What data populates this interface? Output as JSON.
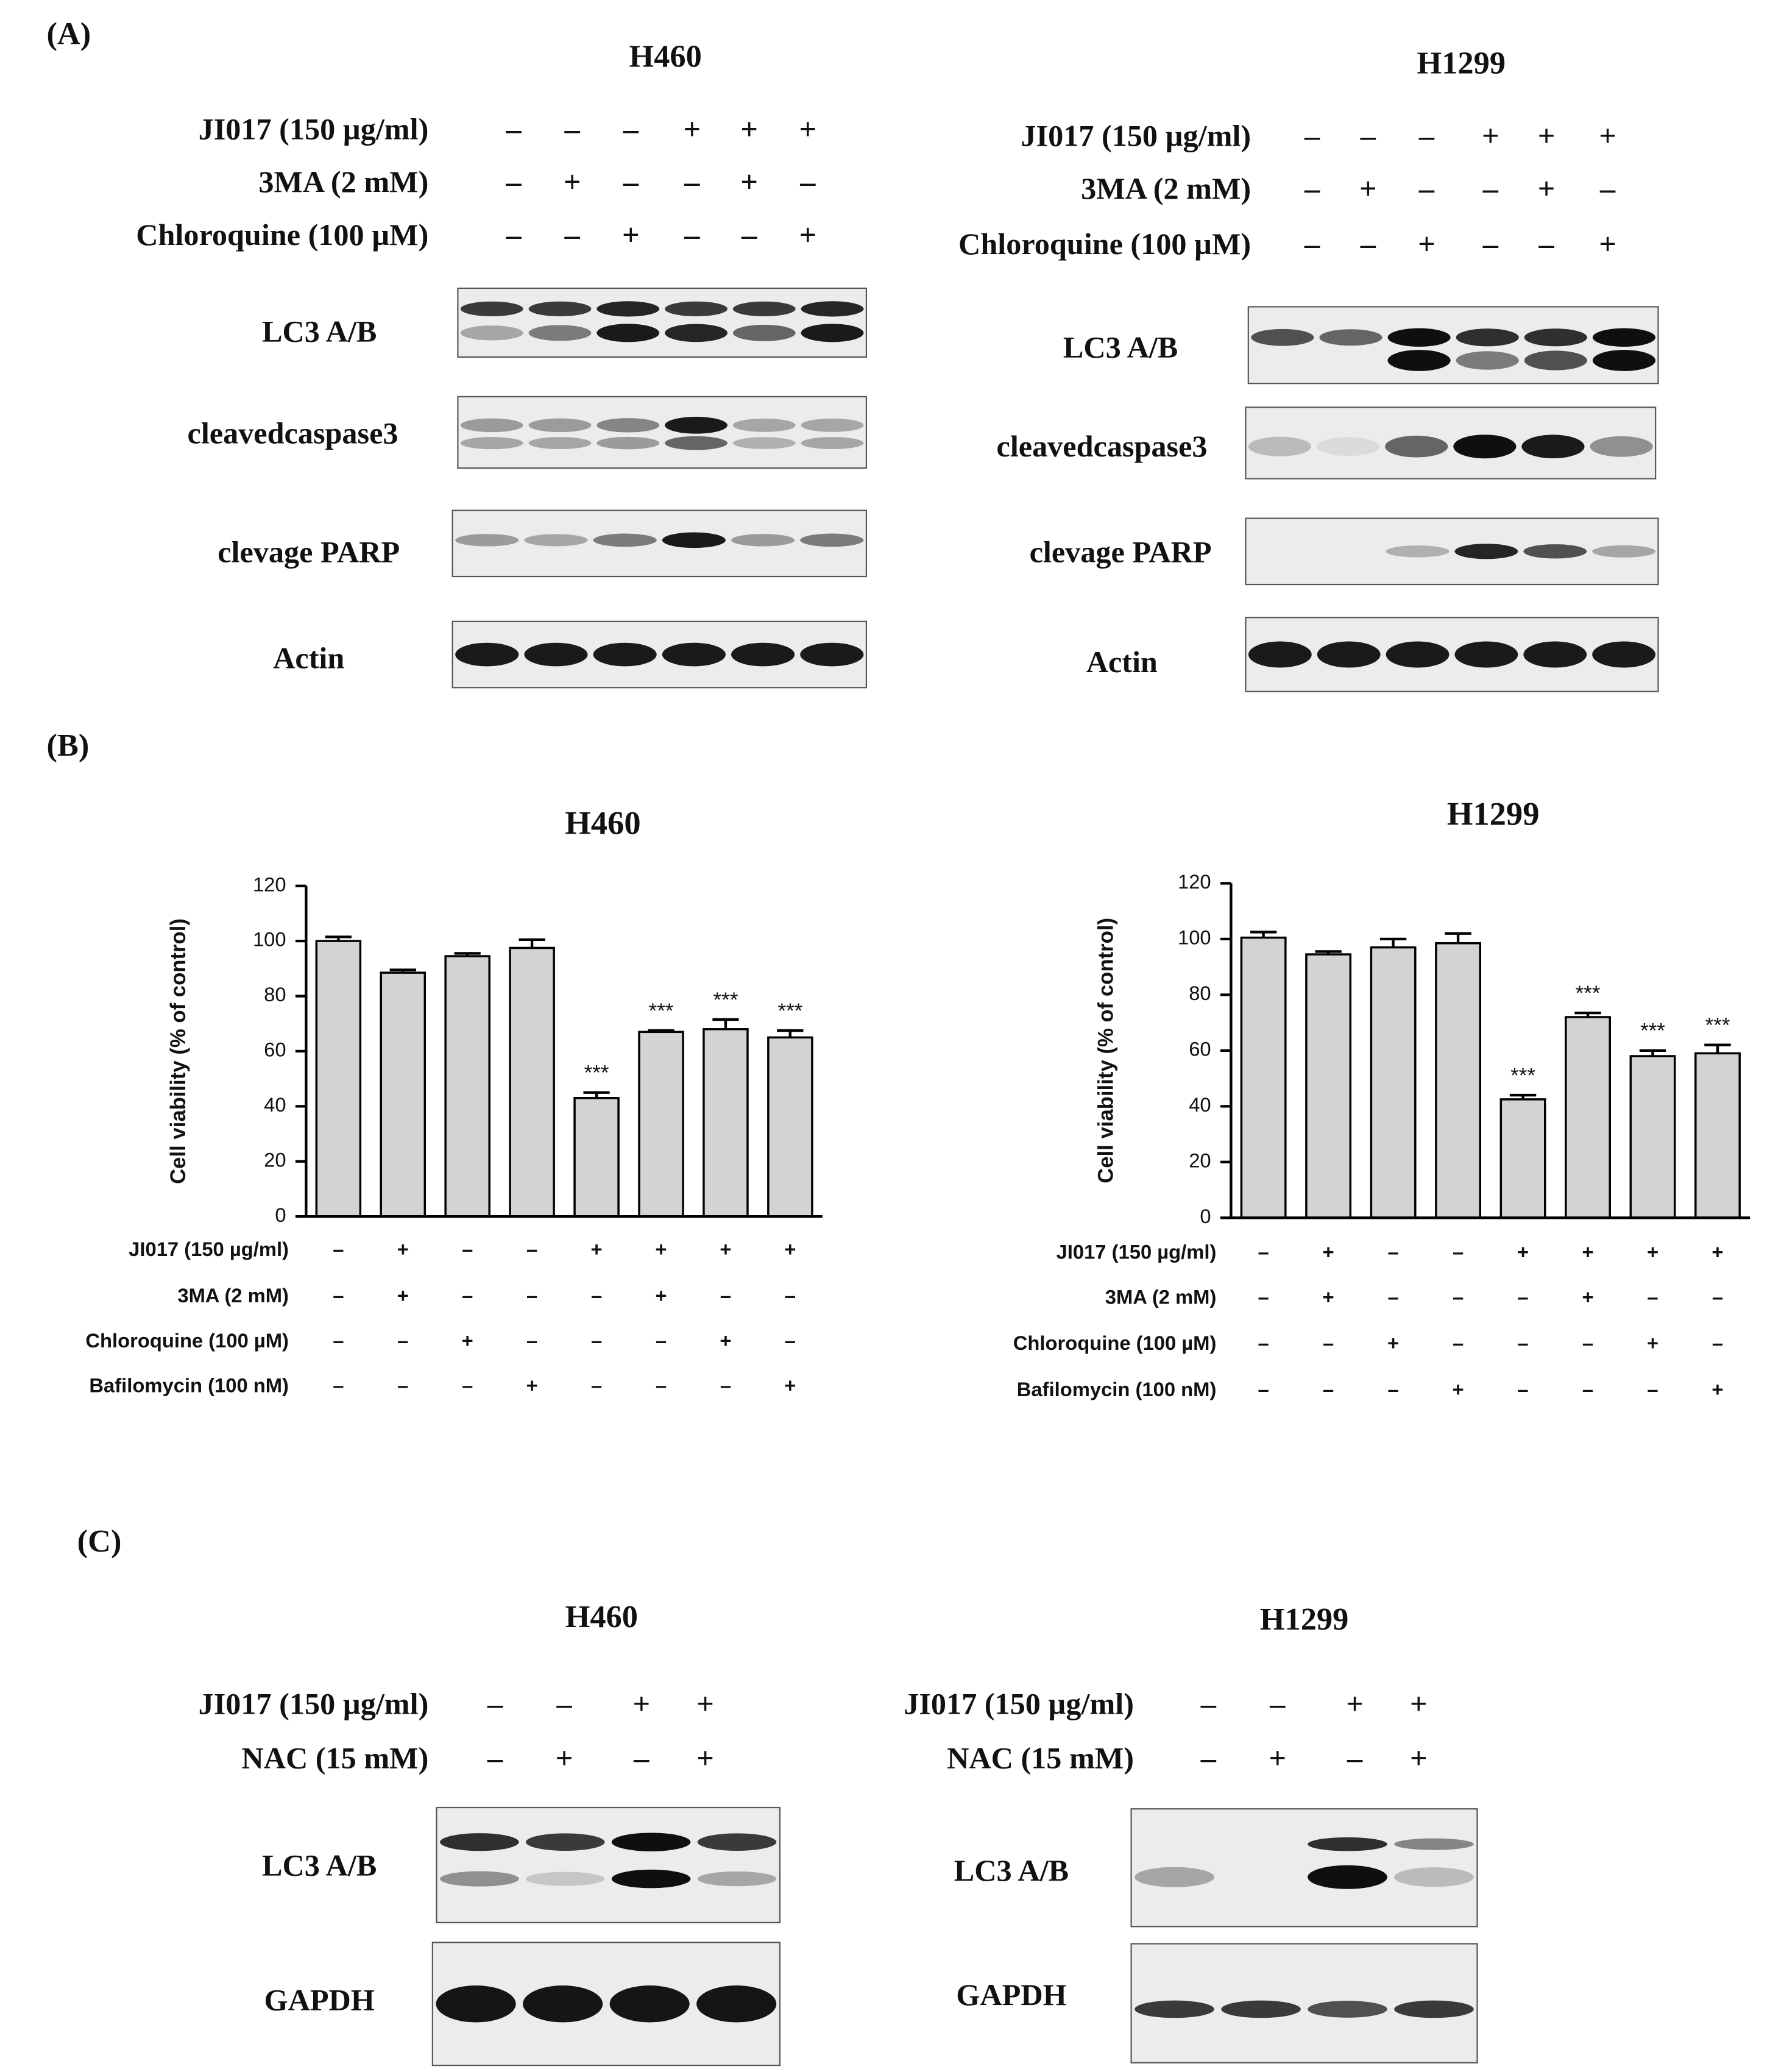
{
  "panel_a": {
    "label": "(A)",
    "blocks": [
      {
        "title": "H460",
        "treatments": [
          {
            "label": "JI017 (150 µg/ml)",
            "signs": [
              "–",
              "–",
              "–",
              "+",
              "+",
              "+"
            ]
          },
          {
            "label": "3MA (2 mM)",
            "signs": [
              "–",
              "+",
              "–",
              "–",
              "+",
              "–"
            ]
          },
          {
            "label": "Chloroquine (100 µM)",
            "signs": [
              "–",
              "–",
              "+",
              "–",
              "–",
              "+"
            ]
          }
        ],
        "blots": [
          "LC3 A/B",
          "cleavedcaspase3",
          "clevage PARP",
          "Actin"
        ]
      },
      {
        "title": "H1299",
        "treatments": [
          {
            "label": "JI017 (150 µg/ml)",
            "signs": [
              "–",
              "–",
              "–",
              "+",
              "+",
              "+"
            ]
          },
          {
            "label": "3MA (2 mM)",
            "signs": [
              "–",
              "+",
              "–",
              "–",
              "+",
              "–"
            ]
          },
          {
            "label": "Chloroquine (100 µM)",
            "signs": [
              "–",
              "–",
              "+",
              "–",
              "–",
              "+"
            ]
          }
        ],
        "blots": [
          "LC3 A/B",
          "cleavedcaspase3",
          "clevage PARP",
          "Actin"
        ]
      }
    ]
  },
  "panel_b": {
    "label": "(B)"
  },
  "chart_data": [
    {
      "type": "bar",
      "title": "H460",
      "y_label": "Cell viability (% of control)",
      "values": [
        100,
        88.5,
        94.5,
        97.5,
        43,
        67,
        68,
        65
      ],
      "errors": [
        1.5,
        1,
        1,
        3,
        2,
        0.5,
        3.5,
        2.5
      ],
      "value_labels": [
        null,
        null,
        null,
        null,
        "***",
        "***",
        "***",
        "***"
      ],
      "color": "#d3d3d3",
      "ylim": [
        0,
        120
      ],
      "yticks": [
        0,
        20,
        40,
        60,
        80,
        100,
        120
      ],
      "treatments": [
        {
          "label": "JI017 (150 µg/ml)",
          "signs": [
            "–",
            "+",
            "–",
            "–",
            "+",
            "+",
            "+",
            "+"
          ]
        },
        {
          "label": "3MA (2 mM)",
          "signs": [
            "–",
            "+",
            "–",
            "–",
            "–",
            "+",
            "–",
            "–"
          ]
        },
        {
          "label": "Chloroquine (100 µM)",
          "signs": [
            "–",
            "–",
            "+",
            "–",
            "–",
            "–",
            "+",
            "–"
          ]
        },
        {
          "label": "Bafilomycin (100 nM)",
          "signs": [
            "–",
            "–",
            "–",
            "+",
            "–",
            "–",
            "–",
            "+"
          ]
        }
      ]
    },
    {
      "type": "bar",
      "title": "H1299",
      "y_label": "Cell viability (% of control)",
      "values": [
        100.5,
        94.5,
        97,
        98.5,
        42.5,
        72,
        58,
        59
      ],
      "errors": [
        2,
        1,
        3,
        3.5,
        1.5,
        1.5,
        2,
        3
      ],
      "value_labels": [
        null,
        null,
        null,
        null,
        "***",
        "***",
        "***",
        "***"
      ],
      "color": "#d3d3d3",
      "ylim": [
        0,
        120
      ],
      "yticks": [
        0,
        20,
        40,
        60,
        80,
        100,
        120
      ],
      "treatments": [
        {
          "label": "JI017 (150 µg/ml)",
          "signs": [
            "–",
            "+",
            "–",
            "–",
            "+",
            "+",
            "+",
            "+"
          ]
        },
        {
          "label": "3MA (2 mM)",
          "signs": [
            "–",
            "+",
            "–",
            "–",
            "–",
            "+",
            "–",
            "–"
          ]
        },
        {
          "label": "Chloroquine (100 µM)",
          "signs": [
            "–",
            "–",
            "+",
            "–",
            "–",
            "–",
            "+",
            "–"
          ]
        },
        {
          "label": "Bafilomycin (100 nM)",
          "signs": [
            "–",
            "–",
            "–",
            "+",
            "–",
            "–",
            "–",
            "+"
          ]
        }
      ]
    }
  ],
  "panel_c": {
    "label": "(C)",
    "blocks": [
      {
        "title": "H460",
        "treatments": [
          {
            "label": "JI017 (150 µg/ml)",
            "signs": [
              "–",
              "–",
              "+",
              "+"
            ]
          },
          {
            "label": "NAC (15 mM)",
            "signs": [
              "–",
              "+",
              "–",
              "+"
            ]
          }
        ],
        "blots": [
          "LC3 A/B",
          "GAPDH"
        ]
      },
      {
        "title": "H1299",
        "treatments": [
          {
            "label": "JI017 (150 µg/ml)",
            "signs": [
              "–",
              "–",
              "+",
              "+"
            ]
          },
          {
            "label": "NAC (15 mM)",
            "signs": [
              "–",
              "+",
              "–",
              "+"
            ]
          }
        ],
        "blots": [
          "LC3 A/B",
          "GAPDH"
        ]
      }
    ]
  }
}
